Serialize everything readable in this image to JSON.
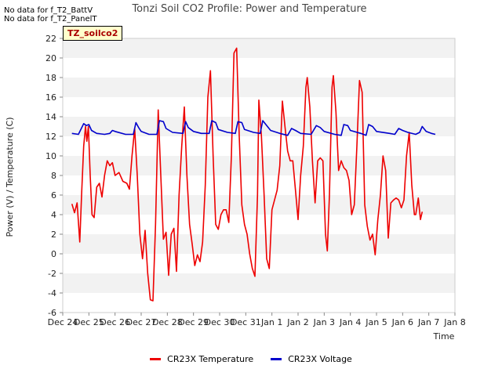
{
  "notes": [
    "No data for f_T2_BattV",
    "No data for f_T2_PanelT"
  ],
  "site_tag": "TZ_soilco2",
  "chart_data": {
    "type": "line",
    "title": "Tonzi Soil CO2 Profile: Power and Temperature",
    "xlabel": "Time",
    "ylabel": "Power (V) / Temperature (C)",
    "ylim": [
      -6,
      22
    ],
    "yticks": [
      -6,
      -4,
      -2,
      0,
      2,
      4,
      6,
      8,
      10,
      12,
      14,
      16,
      18,
      20,
      22
    ],
    "xlim": [
      0,
      15
    ],
    "xticks": [
      {
        "x": 0,
        "label": "Dec 24"
      },
      {
        "x": 1,
        "label": "Dec 25"
      },
      {
        "x": 2,
        "label": "Dec 26"
      },
      {
        "x": 3,
        "label": "Dec 27"
      },
      {
        "x": 4,
        "label": "Dec 28"
      },
      {
        "x": 5,
        "label": "Dec 29"
      },
      {
        "x": 6,
        "label": "Dec 30"
      },
      {
        "x": 7,
        "label": "Dec 31"
      },
      {
        "x": 8,
        "label": "Jan 1"
      },
      {
        "x": 9,
        "label": "Jan 2"
      },
      {
        "x": 10,
        "label": "Jan 3"
      },
      {
        "x": 11,
        "label": "Jan 4"
      },
      {
        "x": 12,
        "label": "Jan 5"
      },
      {
        "x": 13,
        "label": "Jan 6"
      },
      {
        "x": 14,
        "label": "Jan 7"
      },
      {
        "x": 15,
        "label": "Jan 8"
      }
    ],
    "grid": "horizontal bands",
    "legend_position": "bottom-center",
    "series": [
      {
        "name": "CR23X Temperature",
        "color": "#ee0000",
        "points": [
          [
            0.35,
            5.1
          ],
          [
            0.45,
            4.2
          ],
          [
            0.55,
            5.2
          ],
          [
            0.65,
            1.2
          ],
          [
            0.72,
            6
          ],
          [
            0.8,
            11
          ],
          [
            0.87,
            13
          ],
          [
            0.92,
            11.5
          ],
          [
            0.98,
            13
          ],
          [
            1.05,
            8
          ],
          [
            1.12,
            4
          ],
          [
            1.2,
            3.7
          ],
          [
            1.3,
            6.8
          ],
          [
            1.4,
            7.2
          ],
          [
            1.5,
            5.8
          ],
          [
            1.6,
            8
          ],
          [
            1.7,
            9.5
          ],
          [
            1.8,
            9
          ],
          [
            1.9,
            9.3
          ],
          [
            2.0,
            8
          ],
          [
            2.15,
            8.3
          ],
          [
            2.3,
            7.4
          ],
          [
            2.45,
            7.2
          ],
          [
            2.55,
            6.6
          ],
          [
            2.65,
            10
          ],
          [
            2.75,
            12.8
          ],
          [
            2.85,
            8
          ],
          [
            2.95,
            2
          ],
          [
            3.05,
            -0.5
          ],
          [
            3.15,
            2.4
          ],
          [
            3.25,
            -2
          ],
          [
            3.35,
            -4.7
          ],
          [
            3.45,
            -4.8
          ],
          [
            3.55,
            3
          ],
          [
            3.65,
            14.7
          ],
          [
            3.75,
            8
          ],
          [
            3.85,
            1.5
          ],
          [
            3.95,
            2.2
          ],
          [
            4.05,
            -2.2
          ],
          [
            4.15,
            2
          ],
          [
            4.25,
            2.6
          ],
          [
            4.35,
            -1.8
          ],
          [
            4.45,
            6
          ],
          [
            4.55,
            11
          ],
          [
            4.65,
            15
          ],
          [
            4.75,
            8
          ],
          [
            4.85,
            3
          ],
          [
            4.95,
            1
          ],
          [
            5.05,
            -1.2
          ],
          [
            5.15,
            -0.1
          ],
          [
            5.25,
            -0.8
          ],
          [
            5.35,
            1.2
          ],
          [
            5.45,
            7
          ],
          [
            5.55,
            16
          ],
          [
            5.65,
            18.7
          ],
          [
            5.75,
            10
          ],
          [
            5.85,
            3
          ],
          [
            5.95,
            2.5
          ],
          [
            6.05,
            4
          ],
          [
            6.15,
            4.5
          ],
          [
            6.25,
            4.5
          ],
          [
            6.35,
            3.2
          ],
          [
            6.45,
            10
          ],
          [
            6.55,
            20.5
          ],
          [
            6.65,
            21
          ],
          [
            6.75,
            12
          ],
          [
            6.85,
            5
          ],
          [
            6.95,
            3
          ],
          [
            7.05,
            2
          ],
          [
            7.15,
            0
          ],
          [
            7.25,
            -1.5
          ],
          [
            7.35,
            -2.3
          ],
          [
            7.45,
            6
          ],
          [
            7.5,
            15.7
          ],
          [
            7.6,
            12
          ],
          [
            7.7,
            6
          ],
          [
            7.8,
            -0.5
          ],
          [
            7.9,
            -1.5
          ],
          [
            8.0,
            4.5
          ],
          [
            8.1,
            5.5
          ],
          [
            8.2,
            6.5
          ],
          [
            8.3,
            9
          ],
          [
            8.4,
            15.6
          ],
          [
            8.5,
            13
          ],
          [
            8.6,
            10.5
          ],
          [
            8.7,
            9.5
          ],
          [
            8.8,
            9.5
          ],
          [
            8.9,
            6.5
          ],
          [
            9.0,
            3.5
          ],
          [
            9.1,
            8
          ],
          [
            9.2,
            11
          ],
          [
            9.3,
            17
          ],
          [
            9.35,
            18
          ],
          [
            9.45,
            15
          ],
          [
            9.55,
            9.5
          ],
          [
            9.65,
            5.2
          ],
          [
            9.75,
            9.5
          ],
          [
            9.85,
            9.8
          ],
          [
            9.95,
            9.5
          ],
          [
            10.05,
            2
          ],
          [
            10.12,
            0.3
          ],
          [
            10.2,
            6
          ],
          [
            10.3,
            17
          ],
          [
            10.35,
            18.2
          ],
          [
            10.45,
            14.5
          ],
          [
            10.55,
            8.5
          ],
          [
            10.65,
            9.5
          ],
          [
            10.75,
            8.8
          ],
          [
            10.85,
            8.5
          ],
          [
            10.95,
            7.5
          ],
          [
            11.05,
            4
          ],
          [
            11.15,
            5
          ],
          [
            11.25,
            11
          ],
          [
            11.35,
            17.7
          ],
          [
            11.45,
            16.5
          ],
          [
            11.55,
            5
          ],
          [
            11.65,
            2.8
          ],
          [
            11.75,
            1.4
          ],
          [
            11.85,
            2
          ],
          [
            11.95,
            -0.1
          ],
          [
            12.05,
            3.5
          ],
          [
            12.15,
            6
          ],
          [
            12.25,
            10
          ],
          [
            12.35,
            8.5
          ],
          [
            12.45,
            1.6
          ],
          [
            12.55,
            5.2
          ],
          [
            12.65,
            5.5
          ],
          [
            12.75,
            5.7
          ],
          [
            12.85,
            5.5
          ],
          [
            12.95,
            4.7
          ],
          [
            13.05,
            5.5
          ],
          [
            13.15,
            10
          ],
          [
            13.25,
            12.4
          ],
          [
            13.35,
            7
          ],
          [
            13.45,
            4
          ],
          [
            13.5,
            4
          ],
          [
            13.6,
            5.7
          ],
          [
            13.68,
            3.5
          ],
          [
            13.75,
            4.3
          ]
        ]
      },
      {
        "name": "CR23X Voltage",
        "color": "#0000cc",
        "points": [
          [
            0.35,
            12.3
          ],
          [
            0.6,
            12.2
          ],
          [
            0.8,
            13.3
          ],
          [
            0.9,
            13.1
          ],
          [
            1.0,
            13.2
          ],
          [
            1.1,
            12.6
          ],
          [
            1.3,
            12.3
          ],
          [
            1.6,
            12.2
          ],
          [
            1.8,
            12.3
          ],
          [
            1.9,
            12.6
          ],
          [
            2.0,
            12.5
          ],
          [
            2.4,
            12.2
          ],
          [
            2.7,
            12.2
          ],
          [
            2.8,
            13.4
          ],
          [
            2.9,
            12.9
          ],
          [
            3.0,
            12.5
          ],
          [
            3.3,
            12.2
          ],
          [
            3.6,
            12.2
          ],
          [
            3.7,
            13.6
          ],
          [
            3.85,
            13.5
          ],
          [
            3.95,
            12.8
          ],
          [
            4.2,
            12.4
          ],
          [
            4.6,
            12.3
          ],
          [
            4.7,
            13.5
          ],
          [
            4.8,
            12.9
          ],
          [
            5.0,
            12.5
          ],
          [
            5.3,
            12.3
          ],
          [
            5.6,
            12.3
          ],
          [
            5.7,
            13.6
          ],
          [
            5.85,
            13.4
          ],
          [
            5.95,
            12.7
          ],
          [
            6.3,
            12.4
          ],
          [
            6.6,
            12.3
          ],
          [
            6.7,
            13.5
          ],
          [
            6.85,
            13.4
          ],
          [
            6.95,
            12.7
          ],
          [
            7.3,
            12.4
          ],
          [
            7.55,
            12.3
          ],
          [
            7.65,
            13.6
          ],
          [
            7.8,
            13.1
          ],
          [
            7.95,
            12.6
          ],
          [
            8.3,
            12.3
          ],
          [
            8.6,
            12.1
          ],
          [
            8.75,
            12.8
          ],
          [
            8.9,
            12.6
          ],
          [
            9.1,
            12.3
          ],
          [
            9.5,
            12.2
          ],
          [
            9.7,
            13.1
          ],
          [
            9.85,
            12.9
          ],
          [
            10.0,
            12.5
          ],
          [
            10.4,
            12.2
          ],
          [
            10.65,
            12.1
          ],
          [
            10.75,
            13.2
          ],
          [
            10.9,
            13.1
          ],
          [
            11.0,
            12.6
          ],
          [
            11.4,
            12.3
          ],
          [
            11.6,
            12.1
          ],
          [
            11.7,
            13.2
          ],
          [
            11.85,
            13.0
          ],
          [
            12.0,
            12.5
          ],
          [
            12.5,
            12.3
          ],
          [
            12.7,
            12.2
          ],
          [
            12.85,
            12.8
          ],
          [
            13.0,
            12.6
          ],
          [
            13.2,
            12.4
          ],
          [
            13.5,
            12.2
          ],
          [
            13.65,
            12.4
          ],
          [
            13.75,
            13.0
          ],
          [
            13.9,
            12.5
          ],
          [
            14.1,
            12.3
          ],
          [
            14.25,
            12.2
          ]
        ]
      }
    ]
  }
}
